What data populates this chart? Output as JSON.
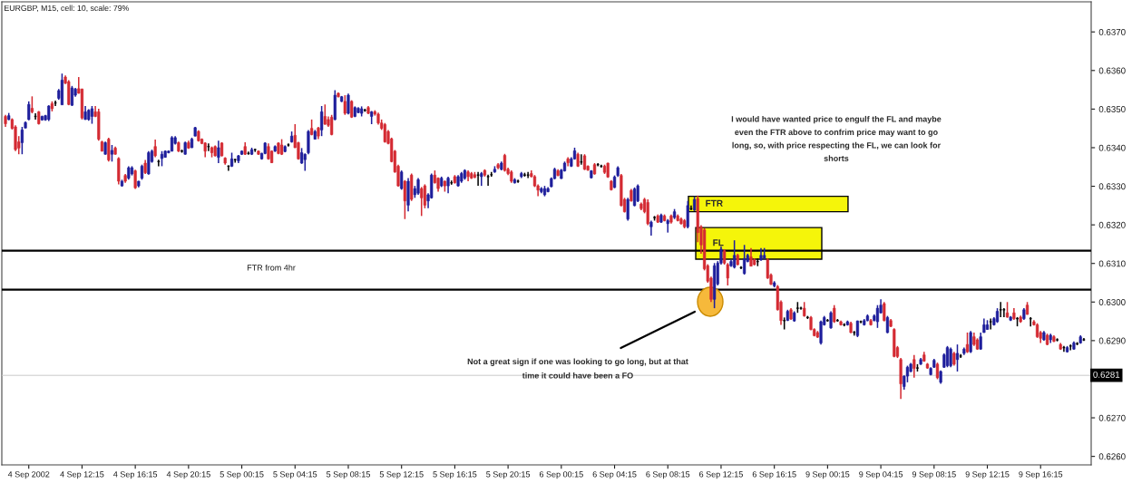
{
  "chart_data": {
    "type": "candlestick",
    "title": "EURGBP, M15, cell: 10, scale: 79%",
    "categories": [
      null,
      null,
      null,
      null,
      null,
      null,
      null,
      "4 Sep 2002",
      null,
      null,
      null,
      null,
      null,
      null,
      null,
      null,
      null,
      null,
      null,
      null,
      null,
      null,
      null,
      "4 Sep 12:15",
      null,
      null,
      null,
      null,
      null,
      null,
      null,
      null,
      null,
      null,
      null,
      null,
      null,
      null,
      null,
      "4 Sep 16:15",
      null,
      null,
      null,
      null,
      null,
      null,
      null,
      null,
      null,
      null,
      null,
      null,
      null,
      null,
      null,
      "4 Sep 20:15",
      null,
      null,
      null,
      null,
      null,
      null,
      null,
      null,
      null,
      null,
      null,
      null,
      null,
      null,
      null,
      "5 Sep 00:15",
      null,
      null,
      null,
      null,
      null,
      null,
      null,
      null,
      null,
      null,
      null,
      null,
      null,
      null,
      null,
      "5 Sep 04:15",
      null,
      null,
      null,
      null,
      null,
      null,
      null,
      null,
      null,
      null,
      null,
      null,
      null,
      null,
      null,
      "5 Sep 08:15",
      null,
      null,
      null,
      null,
      null,
      null,
      null,
      null,
      null,
      null,
      null,
      null,
      null,
      null,
      null,
      "5 Sep 12:15",
      null,
      null,
      null,
      null,
      null,
      null,
      null,
      null,
      null,
      null,
      null,
      null,
      null,
      null,
      null,
      "5 Sep 16:15",
      null,
      null,
      null,
      null,
      null,
      null,
      null,
      null,
      null,
      null,
      null,
      null,
      null,
      null,
      null,
      "5 Sep 20:15",
      null,
      null,
      null,
      null,
      null,
      null,
      null,
      null,
      null,
      null,
      null,
      null,
      null,
      null,
      null,
      "6 Sep 00:15",
      null,
      null,
      null,
      null,
      null,
      null,
      null,
      null,
      null,
      null,
      null,
      null,
      null,
      null,
      null,
      "6 Sep 04:15",
      null,
      null,
      null,
      null,
      null,
      null,
      null,
      null,
      null,
      null,
      null,
      null,
      null,
      null,
      null,
      "6 Sep 08:15",
      null,
      null,
      null,
      null,
      null,
      null,
      null,
      null,
      null,
      null,
      null,
      null,
      null,
      null,
      null,
      "6 Sep 12:15",
      null,
      null,
      null,
      null,
      null,
      null,
      null,
      null,
      null,
      null,
      null,
      null,
      null,
      null,
      null,
      "6 Sep 16:15",
      null,
      null,
      null,
      null,
      null,
      null,
      null,
      null,
      null,
      null,
      null,
      null,
      null,
      null,
      null,
      "9 Sep 00:15",
      null,
      null,
      null,
      null,
      null,
      null,
      null,
      null,
      null,
      null,
      null,
      null,
      null,
      null,
      null,
      "9 Sep 04:15",
      null,
      null,
      null,
      null,
      null,
      null,
      null,
      null,
      null,
      null,
      null,
      null,
      null,
      null,
      null,
      "9 Sep 08:15",
      null,
      null,
      null,
      null,
      null,
      null,
      null,
      null,
      null,
      null,
      null,
      null,
      null,
      null,
      null,
      "9 Sep 12:15",
      null,
      null,
      null,
      null,
      null,
      null,
      null,
      null,
      null,
      null,
      null,
      null,
      null,
      null,
      null,
      "9 Sep 16:15",
      null,
      null,
      null,
      null,
      null,
      null,
      null,
      null,
      null,
      null,
      null,
      null,
      null
    ],
    "ohlc": [
      [
        0.63481,
        0.63485,
        0.63454,
        0.63462
      ],
      [
        0.63473,
        0.6349,
        0.63471,
        0.63483
      ],
      [
        0.63473,
        0.63476,
        0.63447,
        0.6345
      ],
      [
        0.63454,
        0.63458,
        0.63391,
        0.63395
      ],
      [
        0.63415,
        0.6343,
        0.63383,
        0.63399
      ],
      [
        0.63413,
        0.63454,
        0.63383,
        0.63446
      ],
      [
        0.63451,
        0.63468,
        0.6345,
        0.63465
      ],
      [
        0.63473,
        0.6352,
        0.63471,
        0.63512
      ],
      [
        0.63502,
        0.63533,
        0.63489,
        0.63493
      ],
      [
        0.63481,
        0.63489,
        0.63473,
        0.63481
      ],
      [
        0.63493,
        0.63495,
        0.6346,
        0.63462
      ],
      [
        0.63472,
        0.63483,
        0.6347,
        0.63481
      ],
      [
        0.63472,
        0.63485,
        0.6347,
        0.63483
      ],
      [
        0.63473,
        0.6351,
        0.63469,
        0.63508
      ],
      [
        0.63514,
        0.6352,
        0.63494,
        0.63501
      ],
      [
        0.63516,
        0.63522,
        0.63508,
        0.63516
      ],
      [
        0.63528,
        0.63552,
        0.63524,
        0.63548
      ],
      [
        0.63511,
        0.63592,
        0.63511,
        0.63575
      ],
      [
        0.63583,
        0.63587,
        0.63565,
        0.63567
      ],
      [
        0.63571,
        0.63575,
        0.6351,
        0.63512
      ],
      [
        0.6351,
        0.6356,
        0.63508,
        0.63555
      ],
      [
        0.63536,
        0.63555,
        0.63532,
        0.63552
      ],
      [
        0.63553,
        0.63583,
        0.6354,
        0.63541
      ],
      [
        0.63552,
        0.63553,
        0.63473,
        0.63477
      ],
      [
        0.63473,
        0.63508,
        0.63472,
        0.63493
      ],
      [
        0.63473,
        0.635,
        0.6347,
        0.63497
      ],
      [
        0.63481,
        0.63508,
        0.63462,
        0.63501
      ],
      [
        0.63493,
        0.63508,
        0.63479,
        0.63481
      ],
      [
        0.63493,
        0.63501,
        0.63418,
        0.63422
      ],
      [
        0.63415,
        0.63418,
        0.6339,
        0.63391
      ],
      [
        0.63383,
        0.63416,
        0.63382,
        0.63413
      ],
      [
        0.63422,
        0.63426,
        0.63364,
        0.63368
      ],
      [
        0.63383,
        0.63407,
        0.63364,
        0.63393
      ],
      [
        0.63399,
        0.63403,
        0.63382,
        0.63383
      ],
      [
        0.63372,
        0.63375,
        0.63305,
        0.63313
      ],
      [
        0.63301,
        0.63317,
        0.63299,
        0.63313
      ],
      [
        0.63328,
        0.63332,
        0.63309,
        0.63313
      ],
      [
        0.63321,
        0.63352,
        0.63317,
        0.63348
      ],
      [
        0.63332,
        0.63352,
        0.63328,
        0.63348
      ],
      [
        0.6334,
        0.63343,
        0.63293,
        0.63296
      ],
      [
        0.63301,
        0.63314,
        0.63297,
        0.63313
      ],
      [
        0.63321,
        0.63356,
        0.63317,
        0.63352
      ],
      [
        0.6336,
        0.63368,
        0.63332,
        0.63335
      ],
      [
        0.63332,
        0.63391,
        0.6333,
        0.63387
      ],
      [
        0.63364,
        0.63395,
        0.63361,
        0.63391
      ],
      [
        0.63403,
        0.63421,
        0.63375,
        0.63379
      ],
      [
        0.63364,
        0.63369,
        0.63352,
        0.63364
      ],
      [
        0.63372,
        0.63391,
        0.63352,
        0.63383
      ],
      [
        0.63375,
        0.63393,
        0.63374,
        0.63391
      ],
      [
        0.63387,
        0.63393,
        0.63385,
        0.63391
      ],
      [
        0.63391,
        0.6343,
        0.6339,
        0.63426
      ],
      [
        0.63411,
        0.6343,
        0.63408,
        0.63426
      ],
      [
        0.63413,
        0.63416,
        0.63389,
        0.63391
      ],
      [
        0.63391,
        0.63395,
        0.63387,
        0.63391
      ],
      [
        0.63383,
        0.63416,
        0.63382,
        0.63413
      ],
      [
        0.63413,
        0.63418,
        0.63397,
        0.63399
      ],
      [
        0.634,
        0.63426,
        0.63399,
        0.63422
      ],
      [
        0.6343,
        0.63454,
        0.63429,
        0.63452
      ],
      [
        0.63442,
        0.63445,
        0.63416,
        0.63418
      ],
      [
        0.63422,
        0.63424,
        0.63409,
        0.63411
      ],
      [
        0.63412,
        0.63414,
        0.63375,
        0.63391
      ],
      [
        0.63403,
        0.63411,
        0.63391,
        0.63403
      ],
      [
        0.634,
        0.63403,
        0.63375,
        0.63387
      ],
      [
        0.63403,
        0.63406,
        0.63377,
        0.63379
      ],
      [
        0.63375,
        0.63418,
        0.6336,
        0.634
      ],
      [
        0.63412,
        0.63414,
        0.63377,
        0.63379
      ],
      [
        0.63373,
        0.63375,
        0.63356,
        0.6336
      ],
      [
        0.63352,
        0.63354,
        0.6334,
        0.63352
      ],
      [
        0.63352,
        0.63387,
        0.6335,
        0.63371
      ],
      [
        0.63369,
        0.63371,
        0.63361,
        0.63369
      ],
      [
        0.63366,
        0.63381,
        0.6336,
        0.63379
      ],
      [
        0.63383,
        0.63393,
        0.63381,
        0.63391
      ],
      [
        0.63403,
        0.63414,
        0.63381,
        0.63383
      ],
      [
        0.63385,
        0.6339,
        0.63382,
        0.63385
      ],
      [
        0.63383,
        0.634,
        0.63381,
        0.63395
      ],
      [
        0.63395,
        0.63397,
        0.63389,
        0.63395
      ],
      [
        0.63391,
        0.63393,
        0.63381,
        0.63383
      ],
      [
        0.63371,
        0.63387,
        0.63369,
        0.63385
      ],
      [
        0.63385,
        0.63414,
        0.63383,
        0.63412
      ],
      [
        0.63403,
        0.63411,
        0.63369,
        0.63371
      ],
      [
        0.63391,
        0.63393,
        0.6336,
        0.63361
      ],
      [
        0.63391,
        0.63406,
        0.63389,
        0.63403
      ],
      [
        0.63412,
        0.63414,
        0.63383,
        0.63385
      ],
      [
        0.63407,
        0.63422,
        0.63381,
        0.63383
      ],
      [
        0.6339,
        0.63406,
        0.63388,
        0.63403
      ],
      [
        0.63407,
        0.63411,
        0.63403,
        0.63407
      ],
      [
        0.63415,
        0.63442,
        0.63413,
        0.6343
      ],
      [
        0.63432,
        0.63461,
        0.63399,
        0.634
      ],
      [
        0.63413,
        0.63415,
        0.63369,
        0.63371
      ],
      [
        0.6336,
        0.63399,
        0.63358,
        0.63387
      ],
      [
        0.63369,
        0.63385,
        0.6334,
        0.63383
      ],
      [
        0.63387,
        0.63446,
        0.63383,
        0.63442
      ],
      [
        0.6345,
        0.63473,
        0.63432,
        0.63434
      ],
      [
        0.63422,
        0.63446,
        0.63421,
        0.63442
      ],
      [
        0.63451,
        0.63454,
        0.63422,
        0.6343
      ],
      [
        0.63446,
        0.63508,
        0.6343,
        0.63493
      ],
      [
        0.63481,
        0.63512,
        0.63459,
        0.63461
      ],
      [
        0.63473,
        0.63481,
        0.63454,
        0.63458
      ],
      [
        0.63479,
        0.63485,
        0.63432,
        0.63434
      ],
      [
        0.63473,
        0.63549,
        0.63471,
        0.63536
      ],
      [
        0.63541,
        0.63543,
        0.6353,
        0.63532
      ],
      [
        0.6352,
        0.63534,
        0.63518,
        0.63532
      ],
      [
        0.6352,
        0.63536,
        0.63485,
        0.63489
      ],
      [
        0.63489,
        0.6354,
        0.63486,
        0.63536
      ],
      [
        0.6352,
        0.63523,
        0.63477,
        0.63479
      ],
      [
        0.63481,
        0.63507,
        0.63479,
        0.63504
      ],
      [
        0.63491,
        0.63505,
        0.63489,
        0.63502
      ],
      [
        0.63489,
        0.63507,
        0.63481,
        0.63501
      ],
      [
        0.63497,
        0.63501,
        0.63493,
        0.63497
      ],
      [
        0.63504,
        0.63508,
        0.63487,
        0.63489
      ],
      [
        0.63481,
        0.63495,
        0.63461,
        0.63493
      ],
      [
        0.63493,
        0.63497,
        0.63483,
        0.63487
      ],
      [
        0.63487,
        0.63491,
        0.6346,
        0.63464
      ],
      [
        0.63464,
        0.63473,
        0.63446,
        0.6345
      ],
      [
        0.6346,
        0.63464,
        0.63413,
        0.63415
      ],
      [
        0.63442,
        0.63446,
        0.63409,
        0.63411
      ],
      [
        0.63423,
        0.63426,
        0.63362,
        0.63364
      ],
      [
        0.63391,
        0.63394,
        0.63335,
        0.63337
      ],
      [
        0.63352,
        0.63356,
        0.63299,
        0.63301
      ],
      [
        0.63294,
        0.63341,
        0.63291,
        0.63337
      ],
      [
        0.63313,
        0.63316,
        0.63215,
        0.63262
      ],
      [
        0.63251,
        0.63321,
        0.63235,
        0.63313
      ],
      [
        0.63329,
        0.63333,
        0.63262,
        0.63266
      ],
      [
        0.63278,
        0.63301,
        0.6327,
        0.63294
      ],
      [
        0.63282,
        0.63321,
        0.63278,
        0.63317
      ],
      [
        0.63294,
        0.63298,
        0.63223,
        0.6327
      ],
      [
        0.63301,
        0.63305,
        0.63243,
        0.63251
      ],
      [
        0.63262,
        0.63282,
        0.63243,
        0.63278
      ],
      [
        0.6327,
        0.63333,
        0.63268,
        0.63329
      ],
      [
        0.63329,
        0.63341,
        0.63307,
        0.63309
      ],
      [
        0.63321,
        0.63323,
        0.63286,
        0.63294
      ],
      [
        0.63301,
        0.63325,
        0.63298,
        0.63321
      ],
      [
        0.63313,
        0.63315,
        0.63286,
        0.63301
      ],
      [
        0.63301,
        0.63325,
        0.63282,
        0.63321
      ],
      [
        0.63309,
        0.63315,
        0.63304,
        0.63309
      ],
      [
        0.63325,
        0.63329,
        0.63307,
        0.63309
      ],
      [
        0.63301,
        0.63329,
        0.63299,
        0.63325
      ],
      [
        0.63313,
        0.63337,
        0.63309,
        0.63333
      ],
      [
        0.63321,
        0.63344,
        0.63317,
        0.63341
      ],
      [
        0.63337,
        0.63341,
        0.63313,
        0.63325
      ],
      [
        0.63333,
        0.63337,
        0.63319,
        0.63321
      ],
      [
        0.6333,
        0.63337,
        0.63321,
        0.63323
      ],
      [
        0.63329,
        0.63337,
        0.63301,
        0.63329
      ],
      [
        0.63325,
        0.63337,
        0.63301,
        0.63333
      ],
      [
        0.63341,
        0.63344,
        0.63325,
        0.63329
      ],
      [
        0.63325,
        0.6333,
        0.63301,
        0.63325
      ],
      [
        0.6333,
        0.63337,
        0.63325,
        0.6333
      ],
      [
        0.63337,
        0.63352,
        0.63335,
        0.63344
      ],
      [
        0.63356,
        0.6336,
        0.63344,
        0.63348
      ],
      [
        0.63344,
        0.63364,
        0.63341,
        0.6336
      ],
      [
        0.6338,
        0.63384,
        0.63338,
        0.63341
      ],
      [
        0.63344,
        0.63348,
        0.63329,
        0.63333
      ],
      [
        0.63337,
        0.63341,
        0.63309,
        0.63313
      ],
      [
        0.63309,
        0.63321,
        0.63307,
        0.63317
      ],
      [
        0.63313,
        0.63317,
        0.63309,
        0.63313
      ],
      [
        0.63325,
        0.63337,
        0.63321,
        0.63333
      ],
      [
        0.63329,
        0.63335,
        0.63325,
        0.63329
      ],
      [
        0.63329,
        0.63337,
        0.63321,
        0.63329
      ],
      [
        0.63333,
        0.63341,
        0.63323,
        0.63325
      ],
      [
        0.63325,
        0.63329,
        0.63298,
        0.63301
      ],
      [
        0.63301,
        0.63305,
        0.63274,
        0.6329
      ],
      [
        0.63286,
        0.63298,
        0.63282,
        0.63294
      ],
      [
        0.63278,
        0.63301,
        0.63274,
        0.63294
      ],
      [
        0.63286,
        0.63298,
        0.63284,
        0.63294
      ],
      [
        0.63299,
        0.63323,
        0.63297,
        0.6332
      ],
      [
        0.6332,
        0.63348,
        0.63318,
        0.63344
      ],
      [
        0.6334,
        0.63344,
        0.63326,
        0.63328
      ],
      [
        0.6332,
        0.63345,
        0.63319,
        0.63342
      ],
      [
        0.6334,
        0.63364,
        0.63338,
        0.6336
      ],
      [
        0.63371,
        0.63375,
        0.63352,
        0.63361
      ],
      [
        0.63352,
        0.63375,
        0.6335,
        0.63371
      ],
      [
        0.63371,
        0.634,
        0.63369,
        0.63392
      ],
      [
        0.63383,
        0.63387,
        0.6335,
        0.63352
      ],
      [
        0.63363,
        0.63383,
        0.63356,
        0.63363
      ],
      [
        0.63379,
        0.63383,
        0.63342,
        0.63344
      ],
      [
        0.63352,
        0.63354,
        0.6334,
        0.63342
      ],
      [
        0.63322,
        0.63342,
        0.6332,
        0.6334
      ],
      [
        0.63356,
        0.6336,
        0.6333,
        0.63332
      ],
      [
        0.63356,
        0.6336,
        0.63352,
        0.63356
      ],
      [
        0.63352,
        0.63356,
        0.63348,
        0.63352
      ],
      [
        0.63352,
        0.63356,
        0.63332,
        0.63336
      ],
      [
        0.6336,
        0.63361,
        0.63322,
        0.63324
      ],
      [
        0.63313,
        0.63316,
        0.63289,
        0.63291
      ],
      [
        0.63297,
        0.63328,
        0.63295,
        0.63324
      ],
      [
        0.63328,
        0.63352,
        0.63324,
        0.63348
      ],
      [
        0.63328,
        0.63332,
        0.63248,
        0.6325
      ],
      [
        0.63266,
        0.6327,
        0.63232,
        0.63234
      ],
      [
        0.63215,
        0.6327,
        0.63211,
        0.63266
      ],
      [
        0.63289,
        0.63293,
        0.6326,
        0.63262
      ],
      [
        0.6325,
        0.63297,
        0.63248,
        0.63293
      ],
      [
        0.63262,
        0.63305,
        0.63259,
        0.63301
      ],
      [
        0.63254,
        0.63258,
        0.63238,
        0.63242
      ],
      [
        0.63266,
        0.6327,
        0.6323,
        0.63234
      ],
      [
        0.63258,
        0.63266,
        0.63199,
        0.63203
      ],
      [
        0.63195,
        0.63211,
        0.63172,
        0.63207
      ],
      [
        0.63219,
        0.63223,
        0.63211,
        0.63219
      ],
      [
        0.63223,
        0.63227,
        0.63205,
        0.63207
      ],
      [
        0.63207,
        0.63229,
        0.63205,
        0.63225
      ],
      [
        0.63223,
        0.63227,
        0.63209,
        0.63211
      ],
      [
        0.63203,
        0.63215,
        0.6318,
        0.63211
      ],
      [
        0.63223,
        0.63227,
        0.63203,
        0.63207
      ],
      [
        0.63219,
        0.63241,
        0.63215,
        0.63234
      ],
      [
        0.63223,
        0.63227,
        0.63209,
        0.63211
      ],
      [
        0.63215,
        0.63219,
        0.63201,
        0.63203
      ],
      [
        0.63211,
        0.63215,
        0.63191,
        0.63195
      ],
      [
        0.63195,
        0.63262,
        0.63191,
        0.6325
      ],
      [
        0.63242,
        0.6325,
        0.63238,
        0.63242
      ],
      [
        0.63238,
        0.63274,
        0.63236,
        0.63266
      ],
      [
        0.63268,
        0.63276,
        0.63155,
        0.6318
      ],
      [
        0.63195,
        0.63199,
        0.63125,
        0.63148
      ],
      [
        0.63187,
        0.63191,
        0.63082,
        0.63086
      ],
      [
        0.63094,
        0.63098,
        0.6305,
        0.63054
      ],
      [
        0.63062,
        0.63066,
        0.63,
        0.63007
      ],
      [
        0.63007,
        0.63101,
        0.62984,
        0.63094
      ],
      [
        0.63047,
        0.63106,
        0.63043,
        0.63101
      ],
      [
        0.63101,
        0.63144,
        0.63097,
        0.63137
      ],
      [
        0.63133,
        0.63137,
        0.63097,
        0.63101
      ],
      [
        0.63097,
        0.63101,
        0.63043,
        0.63062
      ],
      [
        0.63094,
        0.63109,
        0.63091,
        0.63105
      ],
      [
        0.6309,
        0.6316,
        0.63087,
        0.63121
      ],
      [
        0.63121,
        0.63125,
        0.63095,
        0.63097
      ],
      [
        0.63089,
        0.63093,
        0.63085,
        0.63089
      ],
      [
        0.63074,
        0.63148,
        0.63071,
        0.63113
      ],
      [
        0.63105,
        0.63125,
        0.63103,
        0.63121
      ],
      [
        0.63117,
        0.6314,
        0.63092,
        0.63093
      ],
      [
        0.63109,
        0.63113,
        0.63095,
        0.63097
      ],
      [
        0.63105,
        0.63113,
        0.63093,
        0.63105
      ],
      [
        0.63109,
        0.6314,
        0.63107,
        0.63121
      ],
      [
        0.63113,
        0.6314,
        0.63111,
        0.63121
      ],
      [
        0.63109,
        0.63113,
        0.6306,
        0.63062
      ],
      [
        0.6307,
        0.63074,
        0.63044,
        0.63046
      ],
      [
        0.63042,
        0.63054,
        0.63038,
        0.6305
      ],
      [
        0.6304,
        0.63044,
        0.62978,
        0.6298
      ],
      [
        0.63,
        0.63004,
        0.62941,
        0.62952
      ],
      [
        0.62952,
        0.6296,
        0.62929,
        0.62952
      ],
      [
        0.62952,
        0.6298,
        0.62951,
        0.62976
      ],
      [
        0.6298,
        0.62984,
        0.62954,
        0.62956
      ],
      [
        0.62951,
        0.62976,
        0.62949,
        0.62972
      ],
      [
        0.62984,
        0.63,
        0.62972,
        0.62984
      ],
      [
        0.62984,
        0.62988,
        0.6298,
        0.62984
      ],
      [
        0.62984,
        0.63,
        0.62962,
        0.62964
      ],
      [
        0.6296,
        0.62964,
        0.62956,
        0.6296
      ],
      [
        0.6296,
        0.62964,
        0.62927,
        0.62929
      ],
      [
        0.62929,
        0.62932,
        0.62911,
        0.62913
      ],
      [
        0.62921,
        0.62925,
        0.62907,
        0.62909
      ],
      [
        0.62894,
        0.62952,
        0.6289,
        0.62949
      ],
      [
        0.62941,
        0.62964,
        0.62939,
        0.6296
      ],
      [
        0.62952,
        0.62956,
        0.62949,
        0.62952
      ],
      [
        0.62933,
        0.62976,
        0.62931,
        0.62972
      ],
      [
        0.62984,
        0.62992,
        0.62946,
        0.62949
      ],
      [
        0.62952,
        0.62956,
        0.62949,
        0.62952
      ],
      [
        0.62949,
        0.62952,
        0.62939,
        0.62941
      ],
      [
        0.62941,
        0.62945,
        0.62937,
        0.62941
      ],
      [
        0.62941,
        0.62952,
        0.62939,
        0.62949
      ],
      [
        0.62945,
        0.62949,
        0.62919,
        0.62921
      ],
      [
        0.62921,
        0.62925,
        0.62913,
        0.62921
      ],
      [
        0.62913,
        0.62952,
        0.62909,
        0.62951
      ],
      [
        0.62949,
        0.62952,
        0.62945,
        0.62949
      ],
      [
        0.62941,
        0.62956,
        0.62939,
        0.62952
      ],
      [
        0.62952,
        0.62968,
        0.6295,
        0.62964
      ],
      [
        0.62952,
        0.62956,
        0.62939,
        0.62941
      ],
      [
        0.62952,
        0.62968,
        0.6295,
        0.62964
      ],
      [
        0.62949,
        0.62992,
        0.62933,
        0.62984
      ],
      [
        0.62972,
        0.63007,
        0.6297,
        0.62992
      ],
      [
        0.62996,
        0.63,
        0.6295,
        0.62952
      ],
      [
        0.62921,
        0.62964,
        0.62919,
        0.6296
      ],
      [
        0.62952,
        0.62956,
        0.62935,
        0.62937
      ],
      [
        0.62929,
        0.62932,
        0.62857,
        0.62859
      ],
      [
        0.62882,
        0.62886,
        0.62855,
        0.62859
      ],
      [
        0.62851,
        0.62855,
        0.62749,
        0.62788
      ],
      [
        0.62781,
        0.6281,
        0.62773,
        0.62808
      ],
      [
        0.62808,
        0.62835,
        0.62792,
        0.62831
      ],
      [
        0.6282,
        0.62842,
        0.62818,
        0.62839
      ],
      [
        0.62851,
        0.62863,
        0.62804,
        0.62828
      ],
      [
        0.62829,
        0.62839,
        0.6282,
        0.62829
      ],
      [
        0.62839,
        0.62855,
        0.62837,
        0.62851
      ],
      [
        0.62863,
        0.62871,
        0.62845,
        0.62847
      ],
      [
        0.62839,
        0.62842,
        0.62827,
        0.62829
      ],
      [
        0.62812,
        0.62831,
        0.6281,
        0.62828
      ],
      [
        0.62831,
        0.62853,
        0.62829,
        0.62849
      ],
      [
        0.62839,
        0.62843,
        0.628,
        0.62804
      ],
      [
        0.62792,
        0.62823,
        0.62788,
        0.6282
      ],
      [
        0.62831,
        0.62867,
        0.62829,
        0.62863
      ],
      [
        0.62835,
        0.62886,
        0.62831,
        0.62882
      ],
      [
        0.62835,
        0.62882,
        0.62831,
        0.62878
      ],
      [
        0.62867,
        0.62871,
        0.62835,
        0.62839
      ],
      [
        0.62851,
        0.6289,
        0.6282,
        0.62867
      ],
      [
        0.6286,
        0.62865,
        0.62855,
        0.6286
      ],
      [
        0.62867,
        0.62882,
        0.62863,
        0.62878
      ],
      [
        0.6289,
        0.62921,
        0.62868,
        0.62871
      ],
      [
        0.62871,
        0.62925,
        0.62868,
        0.62921
      ],
      [
        0.6291,
        0.62921,
        0.62886,
        0.6289
      ],
      [
        0.62902,
        0.62906,
        0.62876,
        0.62878
      ],
      [
        0.62878,
        0.62921,
        0.62876,
        0.6291
      ],
      [
        0.62921,
        0.62957,
        0.6292,
        0.62941
      ],
      [
        0.62929,
        0.62953,
        0.62928,
        0.62941
      ],
      [
        0.62949,
        0.62957,
        0.62929,
        0.62949
      ],
      [
        0.62941,
        0.62961,
        0.62939,
        0.62957
      ],
      [
        0.62949,
        0.62984,
        0.62946,
        0.62976
      ],
      [
        0.6298,
        0.63,
        0.62961,
        0.6298
      ],
      [
        0.6298,
        0.62984,
        0.62961,
        0.6298
      ],
      [
        0.62972,
        0.63,
        0.62959,
        0.62961
      ],
      [
        0.62953,
        0.62964,
        0.62951,
        0.62961
      ],
      [
        0.62972,
        0.62984,
        0.62954,
        0.62957
      ],
      [
        0.62957,
        0.62961,
        0.62937,
        0.62957
      ],
      [
        0.62961,
        0.62965,
        0.62946,
        0.62949
      ],
      [
        0.62957,
        0.62984,
        0.62954,
        0.6298
      ],
      [
        0.62992,
        0.63,
        0.62967,
        0.62968
      ],
      [
        0.62957,
        0.62961,
        0.62937,
        0.62957
      ],
      [
        0.62949,
        0.62953,
        0.62939,
        0.62941
      ],
      [
        0.62941,
        0.62945,
        0.62907,
        0.6291
      ],
      [
        0.62921,
        0.62925,
        0.62894,
        0.62906
      ],
      [
        0.62902,
        0.62925,
        0.629,
        0.62921
      ],
      [
        0.62914,
        0.62918,
        0.62888,
        0.6289
      ],
      [
        0.62902,
        0.62918,
        0.62894,
        0.62914
      ],
      [
        0.6291,
        0.62914,
        0.62896,
        0.62898
      ],
      [
        0.62902,
        0.62906,
        0.62898,
        0.62902
      ],
      [
        0.6289,
        0.62894,
        0.62876,
        0.62878
      ],
      [
        0.62882,
        0.62886,
        0.62871,
        0.62882
      ],
      [
        0.62871,
        0.62886,
        0.62869,
        0.62882
      ],
      [
        0.62886,
        0.6289,
        0.62875,
        0.62886
      ],
      [
        0.62878,
        0.62898,
        0.62876,
        0.62894
      ],
      [
        0.62892,
        0.62896,
        0.62888,
        0.62892
      ],
      [
        0.62894,
        0.62914,
        0.62892,
        0.6291
      ],
      [
        0.62902,
        0.62907,
        0.62899,
        0.62902
      ]
    ],
    "colors": [
      "#d42a32",
      "#1e1e9c",
      "#d42a32",
      "#d42a32",
      "#d42a32",
      "#1e1e9c",
      "#1e1e9c",
      "#1e1e9c",
      "#d42a32",
      "#000000",
      "#d42a32",
      "#1e1e9c",
      "#1e1e9c",
      "#1e1e9c",
      "#d42a32",
      "#000000",
      "#1e1e9c",
      "#1e1e9c",
      "#d42a32",
      "#d42a32",
      "#1e1e9c",
      "#1e1e9c",
      "#d42a32",
      "#d42a32",
      "#1e1e9c",
      "#1e1e9c",
      "#1e1e9c",
      "#d42a32",
      "#d42a32",
      "#d42a32",
      "#1e1e9c",
      "#d42a32",
      "#1e1e9c",
      "#d42a32",
      "#d42a32",
      "#1e1e9c",
      "#d42a32",
      "#1e1e9c",
      "#1e1e9c",
      "#d42a32",
      "#1e1e9c",
      "#1e1e9c",
      "#d42a32",
      "#1e1e9c",
      "#1e1e9c",
      "#d42a32",
      "#000000",
      "#1e1e9c",
      "#1e1e9c",
      "#1e1e9c",
      "#1e1e9c",
      "#1e1e9c",
      "#d42a32",
      "#000000",
      "#1e1e9c",
      "#d42a32",
      "#1e1e9c",
      "#1e1e9c",
      "#d42a32",
      "#d42a32",
      "#d42a32",
      "#000000",
      "#d42a32",
      "#d42a32",
      "#1e1e9c",
      "#d42a32",
      "#d42a32",
      "#000000",
      "#1e1e9c",
      "#000000",
      "#1e1e9c",
      "#1e1e9c",
      "#d42a32",
      "#000000",
      "#1e1e9c",
      "#000000",
      "#d42a32",
      "#1e1e9c",
      "#1e1e9c",
      "#d42a32",
      "#d42a32",
      "#1e1e9c",
      "#d42a32",
      "#d42a32",
      "#1e1e9c",
      "#000000",
      "#1e1e9c",
      "#d42a32",
      "#d42a32",
      "#1e1e9c",
      "#1e1e9c",
      "#1e1e9c",
      "#d42a32",
      "#1e1e9c",
      "#d42a32",
      "#1e1e9c",
      "#d42a32",
      "#d42a32",
      "#d42a32",
      "#1e1e9c",
      "#d42a32",
      "#1e1e9c",
      "#d42a32",
      "#1e1e9c",
      "#d42a32",
      "#1e1e9c",
      "#1e1e9c",
      "#1e1e9c",
      "#000000",
      "#d42a32",
      "#1e1e9c",
      "#d42a32",
      "#d42a32",
      "#d42a32",
      "#d42a32",
      "#d42a32",
      "#d42a32",
      "#d42a32",
      "#d42a32",
      "#1e1e9c",
      "#d42a32",
      "#1e1e9c",
      "#d42a32",
      "#1e1e9c",
      "#1e1e9c",
      "#d42a32",
      "#d42a32",
      "#1e1e9c",
      "#1e1e9c",
      "#d42a32",
      "#d42a32",
      "#1e1e9c",
      "#d42a32",
      "#1e1e9c",
      "#000000",
      "#d42a32",
      "#1e1e9c",
      "#1e1e9c",
      "#1e1e9c",
      "#d42a32",
      "#d42a32",
      "#d42a32",
      "#000000",
      "#1e1e9c",
      "#d42a32",
      "#000000",
      "#000000",
      "#1e1e9c",
      "#d42a32",
      "#1e1e9c",
      "#d42a32",
      "#d42a32",
      "#d42a32",
      "#1e1e9c",
      "#000000",
      "#1e1e9c",
      "#000000",
      "#000000",
      "#d42a32",
      "#d42a32",
      "#d42a32",
      "#1e1e9c",
      "#1e1e9c",
      "#1e1e9c",
      "#1e1e9c",
      "#1e1e9c",
      "#d42a32",
      "#1e1e9c",
      "#1e1e9c",
      "#d42a32",
      "#1e1e9c",
      "#1e1e9c",
      "#d42a32",
      "#000000",
      "#d42a32",
      "#d42a32",
      "#1e1e9c",
      "#d42a32",
      "#000000",
      "#000000",
      "#d42a32",
      "#d42a32",
      "#d42a32",
      "#1e1e9c",
      "#1e1e9c",
      "#d42a32",
      "#d42a32",
      "#1e1e9c",
      "#d42a32",
      "#1e1e9c",
      "#1e1e9c",
      "#d42a32",
      "#d42a32",
      "#d42a32",
      "#1e1e9c",
      "#000000",
      "#d42a32",
      "#1e1e9c",
      "#d42a32",
      "#1e1e9c",
      "#d42a32",
      "#1e1e9c",
      "#d42a32",
      "#d42a32",
      "#d42a32",
      "#1e1e9c",
      "#000000",
      "#1e1e9c",
      "#d42a32",
      "#d42a32",
      "#d42a32",
      "#d42a32",
      "#d42a32",
      "#1e1e9c",
      "#1e1e9c",
      "#1e1e9c",
      "#d42a32",
      "#d42a32",
      "#1e1e9c",
      "#1e1e9c",
      "#d42a32",
      "#000000",
      "#1e1e9c",
      "#1e1e9c",
      "#d42a32",
      "#d42a32",
      "#000000",
      "#1e1e9c",
      "#1e1e9c",
      "#d42a32",
      "#d42a32",
      "#1e1e9c",
      "#d42a32",
      "#d42a32",
      "#000000",
      "#1e1e9c",
      "#d42a32",
      "#1e1e9c",
      "#000000",
      "#000000",
      "#d42a32",
      "#000000",
      "#d42a32",
      "#d42a32",
      "#d42a32",
      "#1e1e9c",
      "#1e1e9c",
      "#000000",
      "#1e1e9c",
      "#d42a32",
      "#000000",
      "#d42a32",
      "#000000",
      "#1e1e9c",
      "#d42a32",
      "#000000",
      "#1e1e9c",
      "#000000",
      "#1e1e9c",
      "#1e1e9c",
      "#d42a32",
      "#1e1e9c",
      "#1e1e9c",
      "#1e1e9c",
      "#d42a32",
      "#1e1e9c",
      "#d42a32",
      "#d42a32",
      "#d42a32",
      "#d42a32",
      "#1e1e9c",
      "#1e1e9c",
      "#1e1e9c",
      "#d42a32",
      "#000000",
      "#1e1e9c",
      "#d42a32",
      "#d42a32",
      "#1e1e9c",
      "#1e1e9c",
      "#d42a32",
      "#1e1e9c",
      "#1e1e9c",
      "#1e1e9c",
      "#1e1e9c",
      "#d42a32",
      "#1e1e9c",
      "#000000",
      "#1e1e9c",
      "#d42a32",
      "#1e1e9c",
      "#d42a32",
      "#d42a32",
      "#1e1e9c",
      "#1e1e9c",
      "#1e1e9c",
      "#000000",
      "#1e1e9c",
      "#1e1e9c",
      "#000000",
      "#000000",
      "#d42a32",
      "#1e1e9c",
      "#d42a32",
      "#000000",
      "#d42a32",
      "#1e1e9c",
      "#d42a32",
      "#000000",
      "#d42a32",
      "#d42a32",
      "#d42a32",
      "#1e1e9c",
      "#d42a32",
      "#1e1e9c",
      "#d42a32",
      "#000000",
      "#d42a32",
      "#000000",
      "#1e1e9c",
      "#000000",
      "#1e1e9c",
      "#000000",
      "#1e1e9c",
      "#000000"
    ],
    "ylim": [
      0.62578,
      0.63778
    ],
    "yticks": [
      {
        "value": 0.626,
        "label": "0.6260"
      },
      {
        "value": 0.627,
        "label": "0.6270"
      },
      {
        "value": 0.629,
        "label": "0.6290"
      },
      {
        "value": 0.63,
        "label": "0.6300"
      },
      {
        "value": 0.631,
        "label": "0.6310"
      },
      {
        "value": 0.632,
        "label": "0.6320"
      },
      {
        "value": 0.633,
        "label": "0.6330"
      },
      {
        "value": 0.634,
        "label": "0.6340"
      },
      {
        "value": 0.635,
        "label": "0.6350"
      },
      {
        "value": 0.636,
        "label": "0.6360"
      },
      {
        "value": 0.637,
        "label": "0.6370"
      }
    ],
    "ref_lines": [
      {
        "axis": "y",
        "value": 0.63133,
        "label": "FTR from 4hr",
        "color": "#000000"
      },
      {
        "axis": "y",
        "value": 0.63032,
        "color": "#000000"
      },
      {
        "axis": "y",
        "value": 0.6281,
        "label": "0.6281",
        "color": "#c8c8c8"
      }
    ],
    "bands": [
      {
        "axis": "y",
        "from": 0.63234,
        "to": 0.63274,
        "label": "FTR",
        "color": "#f5f50a"
      },
      {
        "axis": "y",
        "from": 0.63111,
        "to": 0.63193,
        "label": "FL",
        "color": "#f5f50a"
      }
    ],
    "annotations": [
      "I would have wanted price to engulf the FL and maybe\neven the FTR above to confrim price may want to go\nlong, so, with price respecting the FL, we can look for\nshorts",
      "Not a great sign if one was looking to go long, but at that\ntime it could have been a FO"
    ]
  }
}
